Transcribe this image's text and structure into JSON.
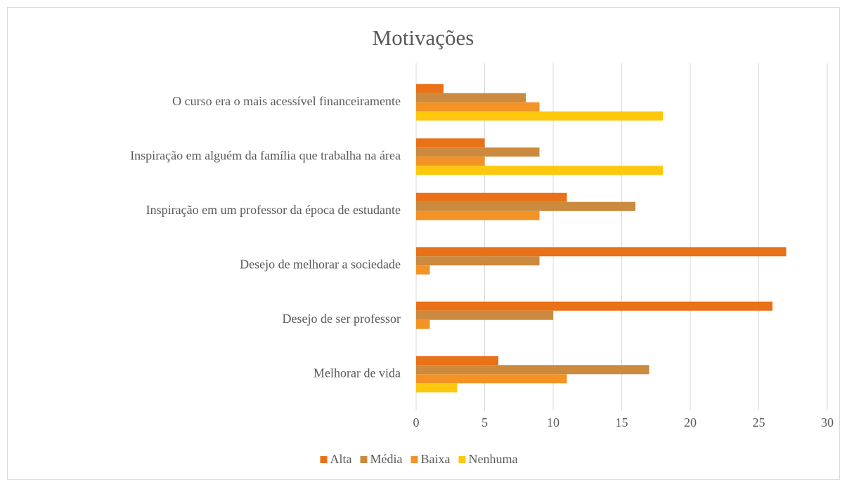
{
  "chart_data": {
    "type": "bar",
    "orientation": "horizontal",
    "title": "Motivações",
    "categories": [
      "O curso era o mais acessível financeiramente",
      "Inspiração em alguém da família que trabalha na área",
      "Inspiração em um professor da época de estudante",
      "Desejo de melhorar a sociedade",
      "Desejo de ser professor",
      "Melhorar de vida"
    ],
    "series": [
      {
        "name": "Alta",
        "color": "#e97118",
        "values": [
          2,
          5,
          11,
          27,
          26,
          6
        ]
      },
      {
        "name": "Média",
        "color": "#cb8a3e",
        "values": [
          8,
          9,
          16,
          9,
          10,
          17
        ]
      },
      {
        "name": "Baixa",
        "color": "#f39325",
        "values": [
          9,
          5,
          9,
          1,
          1,
          11
        ]
      },
      {
        "name": "Nenhuma",
        "color": "#fdc80d",
        "values": [
          18,
          18,
          0,
          0,
          0,
          3
        ]
      }
    ],
    "xlim": [
      0,
      30
    ],
    "xticks": [
      0,
      5,
      10,
      15,
      20,
      25,
      30
    ],
    "grid": true,
    "legend": "bottom"
  }
}
